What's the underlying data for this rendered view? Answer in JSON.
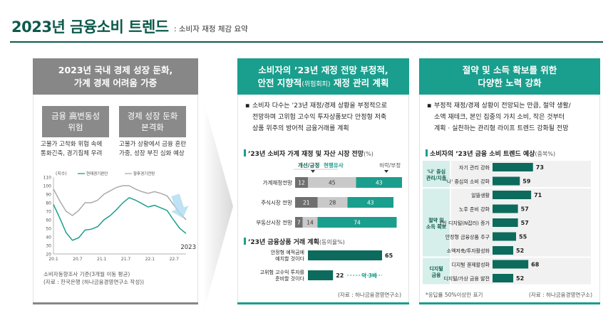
{
  "header": {
    "title": "2023년 금융소비 트렌드",
    "subtitle": ": 소비자 재정 체감 요약"
  },
  "panel1": {
    "heading_line1": "2023년 국내 경제 성장 둔화,",
    "heading_line2": "가계 경제 어려움 가중",
    "box_left_line1": "금융 高변동성",
    "box_left_line2": "위험",
    "box_right_line1": "경제 성장 둔화",
    "box_right_line2": "본격화",
    "desc_left_line1": "고물가 고착화 위험 속에",
    "desc_left_line2": "통화긴축, 경기침체 우려",
    "desc_right_line1": "고물가 상황에서 금융 혼란",
    "desc_right_line2": "가중, 성장 부진 심화 예상",
    "source_line1": "소비자동향조사 기준(3개월 이동 평균)",
    "source_line2": "(자료 : 한국은행 (하나금융경영연구소 작성))",
    "chart_year": "2023"
  },
  "panel2": {
    "heading_line1": "소비자의 ’23년 재정 전망 부정적,",
    "heading_line2a": "안전 지향적",
    "heading_line2b": "(위험회피)",
    "heading_line2c": " 재정 관리 계획",
    "bullet_line1": "소비자 다수는 ’23년 재정/경제 상황을 부정적으로",
    "bullet_line2": "전망하며 고위험 고수익 투자상품보다 안정형 저축",
    "bullet_line3": "상품 위주의 방어적 금융거래를 계획",
    "section1_title": "’23년 소비자 가계 재정 및 자산 시장 전망",
    "section1_unit": "(%)",
    "section2_title": "’23년 금융상품 거래 계획",
    "section2_unit": "(동의율%)",
    "source": "(자료 : 하나금융경영연구소)",
    "compare_label": "약 3배"
  },
  "panel3": {
    "heading_line1": "절약 및 소득 확보를 위한",
    "heading_line2": "다양한 노력 강화",
    "bullet_line1": "부정적 재정/경제 상황이 전망되는 만큼, 절약 생활/",
    "bullet_line2": "소액 재테크, 본인 집중의 가치 소비, 작은 것부터",
    "bullet_line3": "계획 · 실천하는 관리형 라이프 트렌드 강화될 전망",
    "section_title": "소비자의 ’23년 금융 소비 트렌드 예상",
    "section_unit": "(중복%)",
    "note": "*응답률 50%이상만 표기",
    "source": "(자료 : 하나금융경영연구소)",
    "groups": [
      {
        "line1": "'나' 중심",
        "line2": "관리/지출"
      },
      {
        "line1": "절약 및",
        "line2": "소득 확보"
      },
      {
        "line1": "디지털",
        "line2": "금융"
      }
    ]
  },
  "chart_data": [
    {
      "type": "line",
      "title": "",
      "ylabel": "(지수)",
      "ylim": [
        20,
        110
      ],
      "yticks": [
        20,
        30,
        40,
        50,
        60,
        70,
        80,
        90,
        100,
        110
      ],
      "xticks": [
        "20.1",
        "20.7",
        "21.1",
        "21.7",
        "22.1",
        "22.7"
      ],
      "series": [
        {
          "name": "현재경기판단",
          "color": "#1a9e8d",
          "values": [
            78,
            62,
            45,
            36,
            39,
            48,
            49,
            52,
            60,
            65,
            72,
            80,
            86,
            83,
            79,
            75,
            77,
            74,
            71,
            60,
            50,
            44
          ]
        },
        {
          "name": "향후경기전망",
          "color": "#aaaaaa",
          "values": [
            96,
            82,
            70,
            65,
            71,
            80,
            80,
            83,
            90,
            94,
            98,
            100,
            100,
            96,
            93,
            91,
            93,
            91,
            88,
            78,
            68,
            60
          ]
        }
      ]
    },
    {
      "type": "bar",
      "stacked": true,
      "title": "’23년 소비자 가계 재정 및 자산 시장 전망",
      "categories": [
        "가계재정전망",
        "주식시장 전망",
        "부동산시장 전망"
      ],
      "series": [
        {
          "name": "개선/긍정",
          "color": "#6f6f6f",
          "values": [
            12,
            21,
            7
          ]
        },
        {
          "name": "현행유사",
          "color": "#c9c9c9",
          "values": [
            45,
            28,
            14
          ]
        },
        {
          "name": "하락/부정",
          "color": "#1a9e8d",
          "values": [
            43,
            43,
            74
          ]
        }
      ]
    },
    {
      "type": "bar",
      "orientation": "horizontal",
      "title": "’23년 금융상품 거래 계획",
      "categories": [
        "안정형 예적금에 예치할 것이다",
        "고위험 고수익 투자를 준비할 것이다"
      ],
      "category_lines": [
        [
          "안정형 예적금에",
          "예치할 것이다"
        ],
        [
          "고위험 고수익 투자를",
          "준비할 것이다"
        ]
      ],
      "values": [
        65,
        22
      ]
    },
    {
      "type": "bar",
      "orientation": "horizontal",
      "title": "소비자의 ’23년 금융 소비 트렌드 예상",
      "categories": [
        "자기 관리 강화",
        "'나' 중심의 소비 강화",
        "알뜰생활",
        "노후 준비 강화",
        "1인 디지털(N잡러) 증가",
        "안정형 금융상품 추구",
        "소액저축/투자활성화",
        "디지털 결제활성화",
        "디지털/가상 금융 발전"
      ],
      "values": [
        73,
        59,
        71,
        57,
        57,
        55,
        52,
        68,
        52
      ]
    }
  ]
}
